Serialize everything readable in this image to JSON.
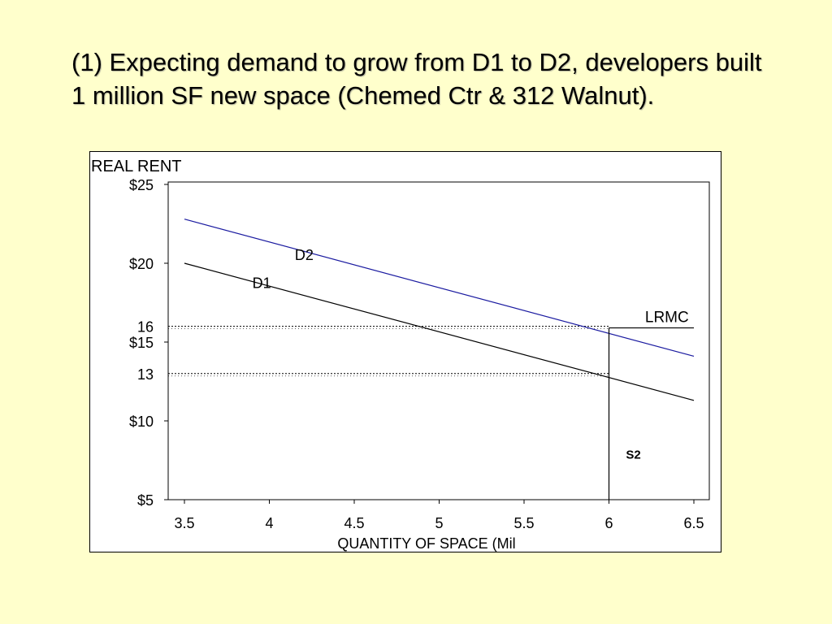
{
  "slide": {
    "title": "(1) Expecting demand to grow from D1 to D2, developers built 1 million SF new space (Chemed Ctr & 312 Walnut)."
  },
  "chart_data": {
    "type": "line",
    "ylabel": "REAL RENT",
    "xlabel": "QUANTITY OF SPACE (Mil",
    "xlim": [
      3.5,
      6.5
    ],
    "ylim": [
      5,
      25
    ],
    "x_ticks": [
      "3.5",
      "4",
      "4.5",
      "5",
      "5.5",
      "6",
      "6.5"
    ],
    "y_ticks": [
      {
        "value": 25,
        "label": "$25"
      },
      {
        "value": 20,
        "label": "$20"
      },
      {
        "value": 15,
        "label": "$15"
      },
      {
        "value": 10,
        "label": "$10"
      },
      {
        "value": 5,
        "label": "$5"
      }
    ],
    "series": [
      {
        "name": "D1",
        "color": "#000000",
        "points": [
          [
            3.5,
            20.0
          ],
          [
            6.5,
            11.3
          ]
        ]
      },
      {
        "name": "D2",
        "color": "#1a1aa0",
        "points": [
          [
            3.5,
            22.8
          ],
          [
            6.5,
            14.1
          ]
        ]
      },
      {
        "name": "LRMC",
        "color": "#000000",
        "points": [
          [
            6.0,
            15.9
          ],
          [
            6.5,
            15.9
          ]
        ]
      },
      {
        "name": "S2",
        "color": "#000000",
        "points": [
          [
            6.0,
            5.0
          ],
          [
            6.0,
            15.9
          ]
        ]
      }
    ],
    "reference_lines": [
      {
        "label": "16",
        "value": 16.0,
        "x_end": 6.0
      },
      {
        "label": "13",
        "value": 13.0,
        "x_end": 6.0
      }
    ],
    "grid": false
  }
}
